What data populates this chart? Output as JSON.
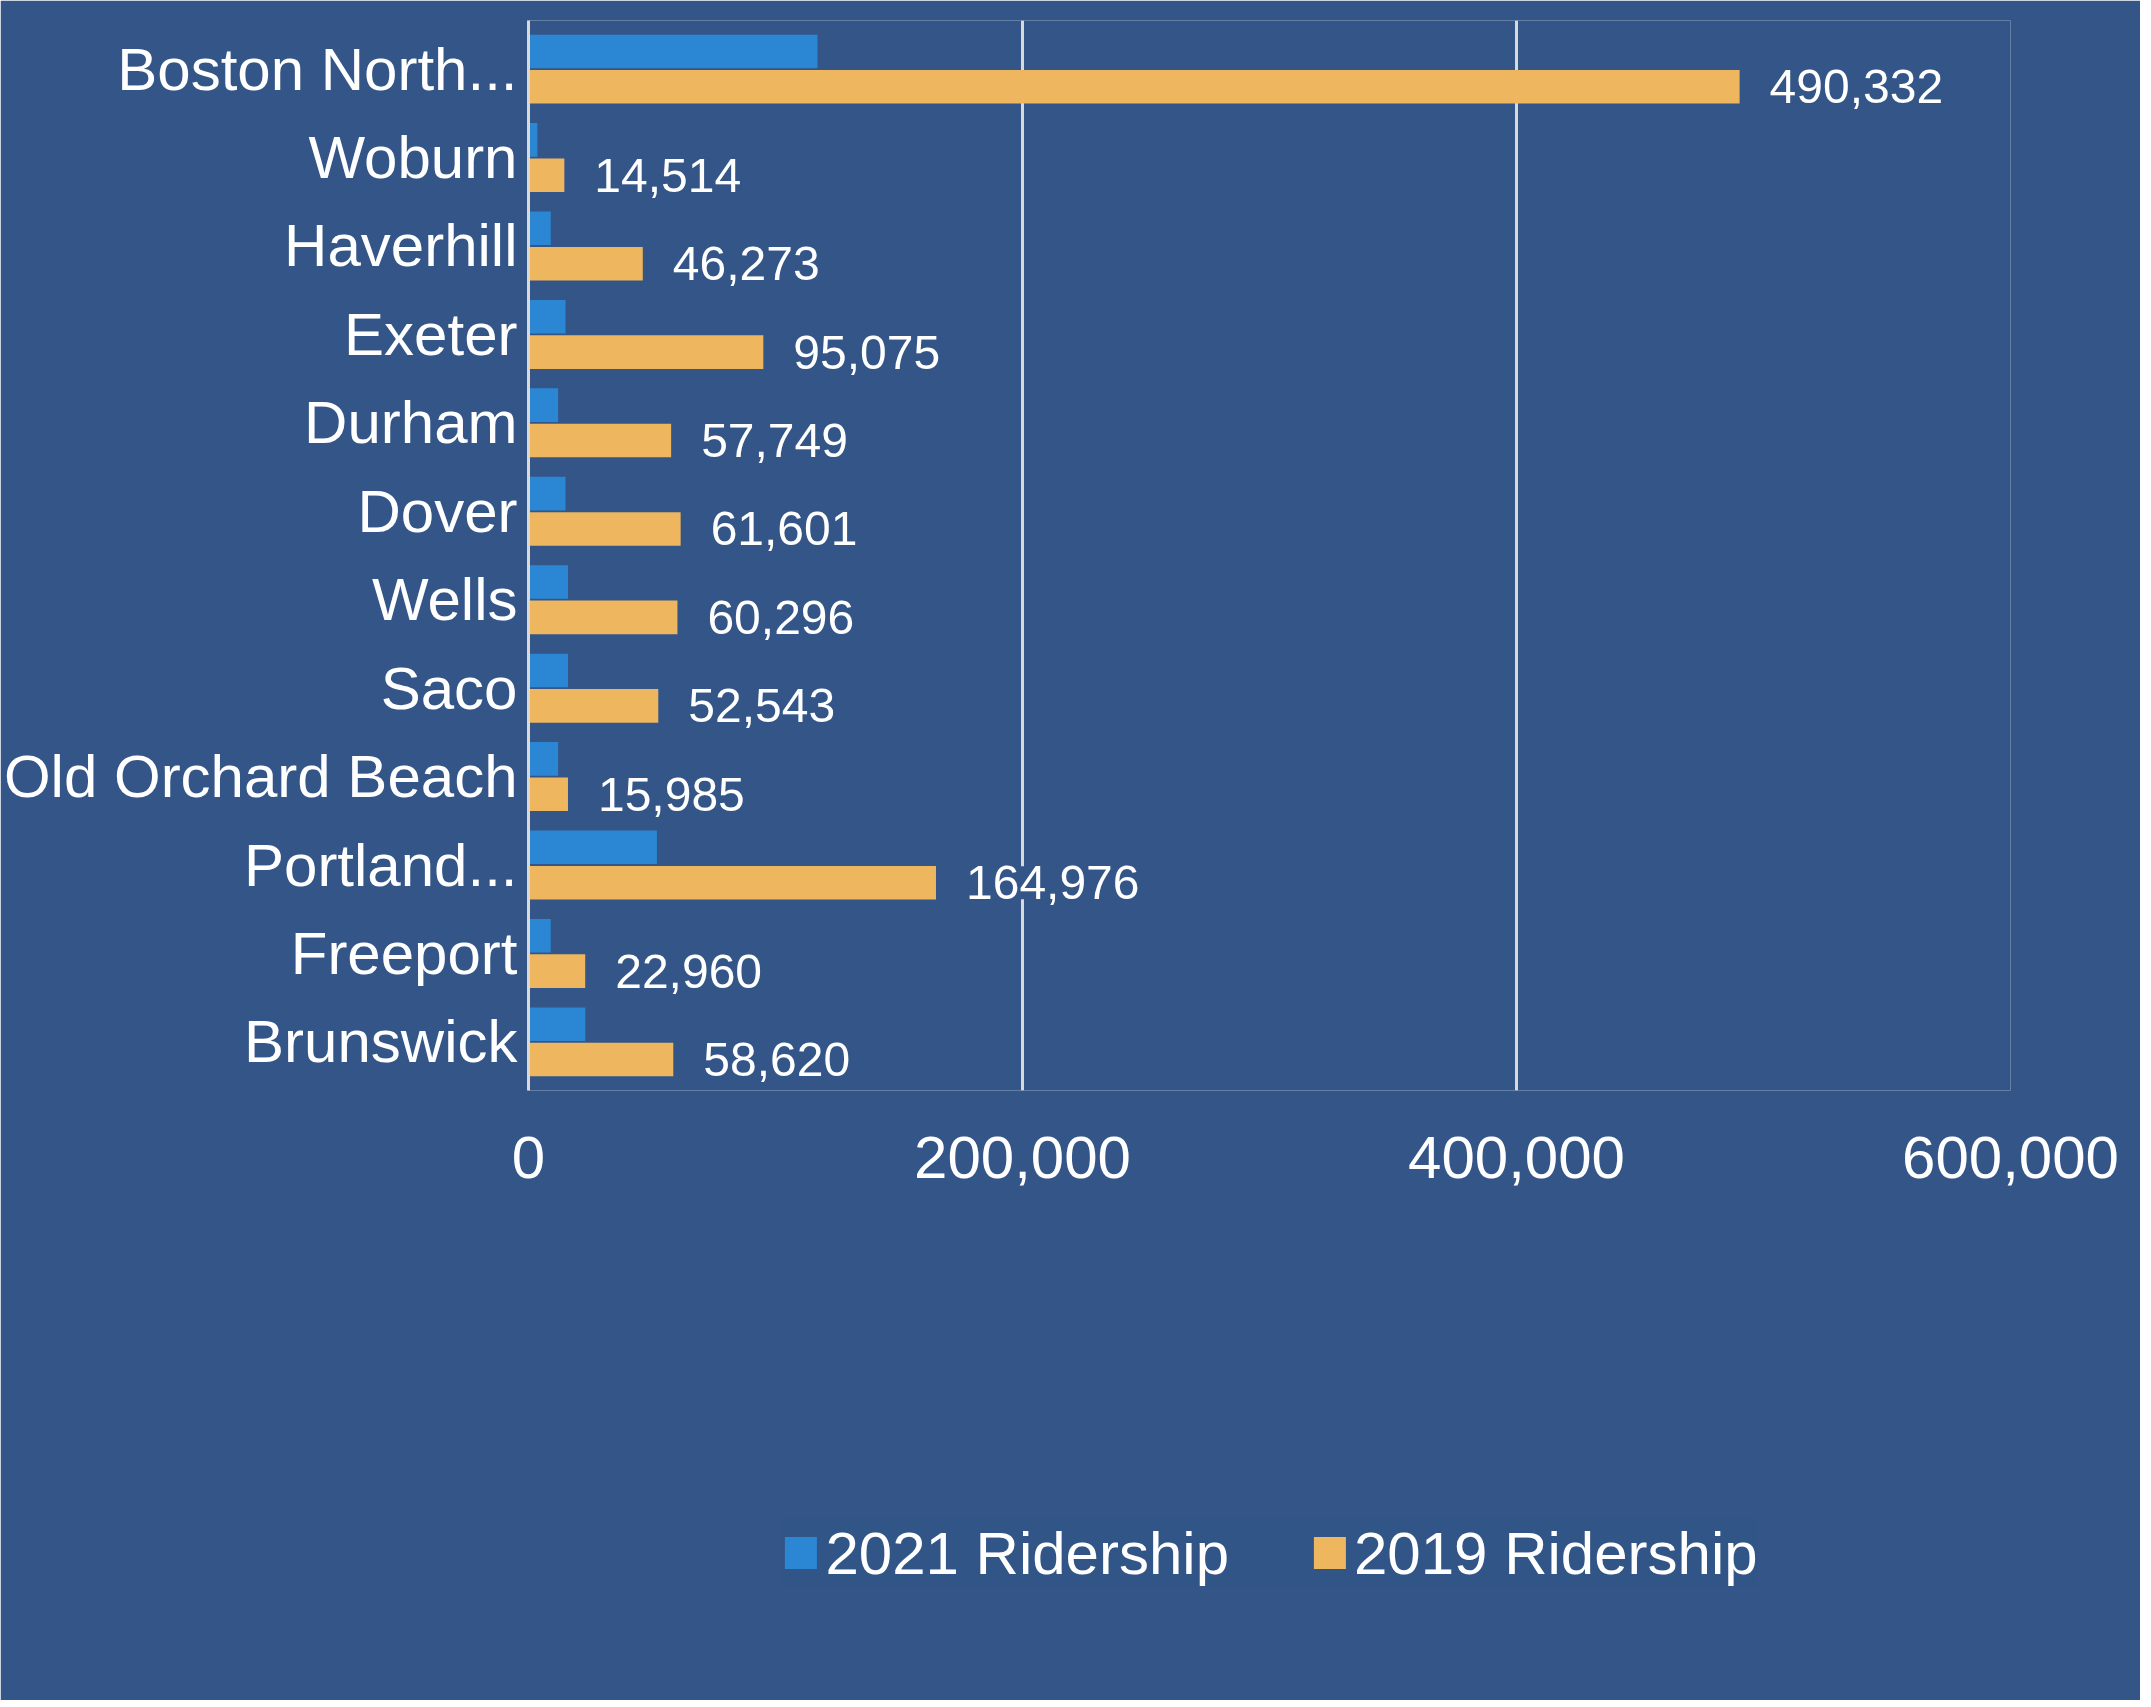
{
  "chart_data": {
    "type": "bar",
    "orientation": "horizontal",
    "categories": [
      "Boston North...",
      "Woburn",
      "Haverhill",
      "Exeter",
      "Durham",
      "Dover",
      "Wells",
      "Saco",
      "Old Orchard Beach",
      "Portland...",
      "Freeport",
      "Brunswick"
    ],
    "series": [
      {
        "name": "2021 Ridership",
        "color": "#2b87d3",
        "values": [
          117000,
          3600,
          9000,
          15000,
          12000,
          15000,
          16000,
          16000,
          12000,
          52000,
          9000,
          23000
        ]
      },
      {
        "name": "2019 Ridership",
        "color": "#efb660",
        "values": [
          490332,
          14514,
          46273,
          95075,
          57749,
          61601,
          60296,
          52543,
          15985,
          164976,
          22960,
          58620
        ],
        "value_labels": [
          "490,332",
          "14,514",
          "46,273",
          "95,075",
          "57,749",
          "61,601",
          "60,296",
          "52,543",
          "15,985",
          "164,976",
          "22,960",
          "58,620"
        ]
      }
    ],
    "xlim": [
      0,
      600000
    ],
    "xticks": [
      {
        "value": 0,
        "label": "0"
      },
      {
        "value": 200000,
        "label": "200,000"
      },
      {
        "value": 400000,
        "label": "400,000"
      },
      {
        "value": 600000,
        "label": "600,000"
      }
    ],
    "grid": "x",
    "legend": "bottom"
  }
}
